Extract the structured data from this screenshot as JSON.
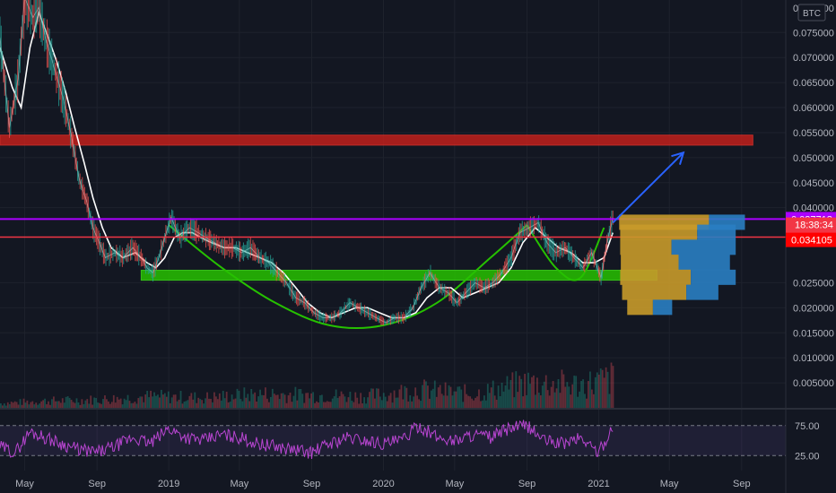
{
  "chart_data": {
    "type": "line",
    "currency": "BTC",
    "x_ticks": [
      "May",
      "Sep",
      "2019",
      "May",
      "Sep",
      "2020",
      "May",
      "Sep",
      "2021",
      "May",
      "Sep"
    ],
    "y_ticks": [
      "0.075000",
      "0.070000",
      "0.065000",
      "0.060000",
      "0.055000",
      "0.050000",
      "0.045000",
      "0.040000",
      "0.025000",
      "0.020000",
      "0.015000",
      "0.010000",
      "0.005000"
    ],
    "y_top_partial_label": "0.080000",
    "ylim": [
      0.0,
      0.0815
    ],
    "x_range": [
      "2018-03-20",
      "2021-11-15"
    ],
    "series": [
      {
        "type": "line",
        "color": "#d1d4dc",
        "dates": [
          "2018-03-20",
          "2018-04-05",
          "2018-04-20",
          "2018-05-01",
          "2018-05-15",
          "2018-05-25",
          "2018-06-05",
          "2018-06-20",
          "2018-07-05",
          "2018-07-20",
          "2018-08-01",
          "2018-08-15",
          "2018-08-25",
          "2018-09-05",
          "2018-09-15",
          "2018-10-01",
          "2018-10-15",
          "2018-11-01",
          "2018-11-15",
          "2018-11-25",
          "2018-12-05",
          "2018-12-15",
          "2018-12-25",
          "2019-01-05",
          "2019-01-20",
          "2019-02-05",
          "2019-02-20",
          "2019-03-05",
          "2019-03-20",
          "2019-04-05",
          "2019-04-20",
          "2019-05-05",
          "2019-05-20",
          "2019-06-05",
          "2019-06-20",
          "2019-07-05",
          "2019-07-20",
          "2019-08-05",
          "2019-08-20",
          "2019-09-05",
          "2019-09-20",
          "2019-10-05",
          "2019-10-20",
          "2019-11-05",
          "2019-11-20",
          "2019-12-05",
          "2019-12-20",
          "2020-01-05",
          "2020-01-20",
          "2020-02-05",
          "2020-02-20",
          "2020-03-05",
          "2020-03-20",
          "2020-04-05",
          "2020-04-20",
          "2020-05-05",
          "2020-05-20",
          "2020-06-05",
          "2020-06-20",
          "2020-07-05",
          "2020-07-20",
          "2020-08-05",
          "2020-08-20",
          "2020-09-05",
          "2020-09-20",
          "2020-10-05",
          "2020-10-20",
          "2020-11-05",
          "2020-11-20",
          "2020-12-05",
          "2020-12-20",
          "2021-01-05",
          "2021-01-15",
          "2021-01-25"
        ],
        "values": [
          0.074,
          0.056,
          0.066,
          0.082,
          0.078,
          0.08,
          0.074,
          0.068,
          0.062,
          0.054,
          0.046,
          0.041,
          0.036,
          0.033,
          0.03,
          0.031,
          0.03,
          0.032,
          0.03,
          0.028,
          0.027,
          0.03,
          0.034,
          0.038,
          0.034,
          0.036,
          0.035,
          0.034,
          0.033,
          0.032,
          0.032,
          0.031,
          0.032,
          0.03,
          0.029,
          0.027,
          0.025,
          0.022,
          0.021,
          0.019,
          0.018,
          0.018,
          0.019,
          0.021,
          0.02,
          0.019,
          0.018,
          0.017,
          0.018,
          0.018,
          0.02,
          0.024,
          0.027,
          0.024,
          0.023,
          0.021,
          0.023,
          0.025,
          0.024,
          0.025,
          0.027,
          0.03,
          0.035,
          0.036,
          0.037,
          0.033,
          0.031,
          0.032,
          0.03,
          0.028,
          0.031,
          0.026,
          0.033,
          0.038
        ]
      },
      {
        "type": "line",
        "color": "#ffffff",
        "dates": [
          "2018-03-20",
          "2018-04-10",
          "2018-04-25",
          "2018-05-10",
          "2018-05-25",
          "2018-06-10",
          "2018-06-25",
          "2018-07-10",
          "2018-07-25",
          "2018-08-10",
          "2018-08-25",
          "2018-09-10",
          "2018-09-25",
          "2018-10-15",
          "2018-11-05",
          "2018-11-25",
          "2018-12-10",
          "2018-12-25",
          "2019-01-10",
          "2019-01-25",
          "2019-02-10",
          "2019-02-25",
          "2019-03-15",
          "2019-04-05",
          "2019-04-25",
          "2019-05-15",
          "2019-06-05",
          "2019-06-25",
          "2019-07-15",
          "2019-08-05",
          "2019-08-25",
          "2019-09-15",
          "2019-10-05",
          "2019-10-25",
          "2019-11-15",
          "2019-12-05",
          "2019-12-25",
          "2020-01-15",
          "2020-02-05",
          "2020-02-25",
          "2020-03-15",
          "2020-04-05",
          "2020-04-25",
          "2020-05-15",
          "2020-06-05",
          "2020-06-25",
          "2020-07-15",
          "2020-08-05",
          "2020-08-25",
          "2020-09-15",
          "2020-10-05",
          "2020-10-25",
          "2020-11-15",
          "2020-12-05",
          "2020-12-25",
          "2021-01-10",
          "2021-01-25"
        ],
        "values": [
          0.072,
          0.064,
          0.06,
          0.072,
          0.079,
          0.074,
          0.069,
          0.063,
          0.056,
          0.049,
          0.042,
          0.036,
          0.032,
          0.03,
          0.031,
          0.029,
          0.028,
          0.03,
          0.034,
          0.035,
          0.035,
          0.034,
          0.033,
          0.032,
          0.032,
          0.031,
          0.03,
          0.029,
          0.027,
          0.024,
          0.021,
          0.019,
          0.018,
          0.019,
          0.02,
          0.02,
          0.019,
          0.018,
          0.018,
          0.019,
          0.022,
          0.024,
          0.024,
          0.022,
          0.023,
          0.024,
          0.025,
          0.028,
          0.033,
          0.036,
          0.034,
          0.032,
          0.031,
          0.029,
          0.029,
          0.03,
          0.035
        ]
      }
    ],
    "volume": {
      "dates": [
        "2018-03-20",
        "2018-06-01",
        "2018-09-01",
        "2018-12-01",
        "2019-03-01",
        "2019-06-01",
        "2019-09-01",
        "2019-12-01",
        "2020-03-01",
        "2020-06-01",
        "2020-09-01",
        "2020-12-01",
        "2021-01-25"
      ],
      "values": [
        0.1,
        0.15,
        0.18,
        0.25,
        0.22,
        0.3,
        0.28,
        0.25,
        0.4,
        0.3,
        0.55,
        0.5,
        0.65
      ]
    },
    "rsi": {
      "levels": [
        75,
        25
      ],
      "level_labels": [
        "75.00",
        "25.00"
      ],
      "dates": [
        "2018-03-20",
        "2018-04-15",
        "2018-05-10",
        "2018-06-05",
        "2018-07-01",
        "2018-08-01",
        "2018-09-01",
        "2018-10-01",
        "2018-11-01",
        "2018-12-01",
        "2019-01-01",
        "2019-02-01",
        "2019-03-01",
        "2019-04-01",
        "2019-05-01",
        "2019-06-01",
        "2019-07-01",
        "2019-08-01",
        "2019-09-01",
        "2019-10-01",
        "2019-11-01",
        "2019-12-01",
        "2020-01-01",
        "2020-02-01",
        "2020-03-01",
        "2020-04-01",
        "2020-05-01",
        "2020-06-01",
        "2020-07-01",
        "2020-08-01",
        "2020-09-01",
        "2020-10-01",
        "2020-11-01",
        "2020-12-01",
        "2021-01-01",
        "2021-01-25"
      ],
      "values": [
        40,
        30,
        65,
        55,
        45,
        35,
        30,
        40,
        55,
        45,
        70,
        55,
        50,
        60,
        55,
        45,
        40,
        35,
        30,
        45,
        55,
        50,
        45,
        50,
        75,
        55,
        50,
        60,
        55,
        70,
        75,
        50,
        45,
        55,
        30,
        72
      ]
    },
    "horizontal_levels": [
      {
        "value": 0.037718,
        "label": "0.037718",
        "color": "#aa00ff",
        "type": "line"
      },
      {
        "value": 0.037696,
        "label": "0.037696",
        "color": "#f23645",
        "type": "line"
      },
      {
        "value": 0.034105,
        "label": "0.034105",
        "color": "#ff0000",
        "type": "badge"
      }
    ],
    "zones": [
      {
        "from": 0.0525,
        "to": 0.0545,
        "color": "#c0201c",
        "start": "2018-03-20",
        "end": "2021-09-20"
      },
      {
        "from": 0.0255,
        "to": 0.0275,
        "color": "#26c100",
        "start": "2018-11-15",
        "end": "2021-04-10"
      }
    ],
    "cup_curve": {
      "color": "#26c100",
      "dates": [
        "2019-01-01",
        "2019-04-01",
        "2019-07-01",
        "2019-10-01",
        "2020-01-01",
        "2020-04-01",
        "2020-07-01",
        "2020-09-01"
      ],
      "values": [
        0.0365,
        0.028,
        0.021,
        0.0165,
        0.0165,
        0.021,
        0.03,
        0.0365
      ]
    },
    "handle_curve": {
      "color": "#26c100",
      "dates": [
        "2020-09-01",
        "2020-10-20",
        "2020-12-01",
        "2021-01-10"
      ],
      "values": [
        0.0365,
        0.028,
        0.026,
        0.036
      ]
    },
    "arrow": {
      "color": "#2962ff",
      "from_date": "2021-01-25",
      "from_value": 0.037,
      "to_date": "2021-05-25",
      "to_value": 0.051
    },
    "countdown": "18:38:34",
    "volume_profile": [
      {
        "value": 0.037,
        "a": 0.7,
        "b": 0.28
      },
      {
        "value": 0.035,
        "a": 0.6,
        "b": 0.3
      },
      {
        "value": 0.032,
        "a": 0.4,
        "b": 0.5
      },
      {
        "value": 0.029,
        "a": 0.45,
        "b": 0.4
      },
      {
        "value": 0.026,
        "a": 0.55,
        "b": 0.35
      },
      {
        "value": 0.023,
        "a": 0.5,
        "b": 0.25
      },
      {
        "value": 0.02,
        "a": 0.2,
        "b": 0.15
      }
    ]
  }
}
